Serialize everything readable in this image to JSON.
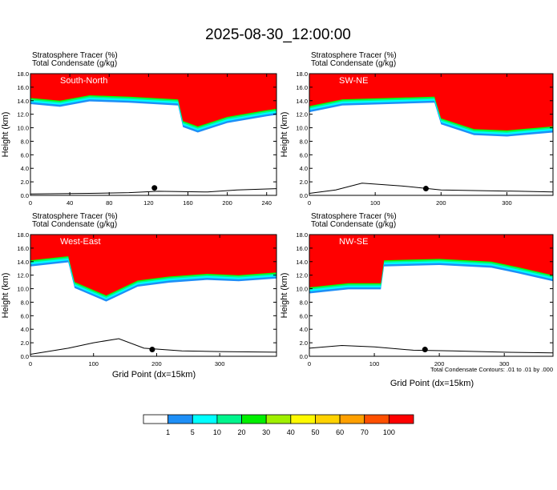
{
  "title": "2025-08-30_12:00:00",
  "panel_header_line1": "Stratosphere Tracer    (%)",
  "panel_header_line2": "Total Condensate    (g/kg)",
  "ylabel": "Height (km)",
  "xlabel": "Grid Point (dx=15km)",
  "contour_note": "Total Condensate Contours: .01 to .01 by .000",
  "colorbar": {
    "colors": [
      "#ffffff",
      "#1e8ff7",
      "#00ffff",
      "#00f58d",
      "#00f000",
      "#a0f000",
      "#fffa00",
      "#ffd200",
      "#ffa000",
      "#ff5000",
      "#ff0000"
    ],
    "labels": [
      "1",
      "5",
      "10",
      "20",
      "30",
      "40",
      "50",
      "60",
      "70",
      "100"
    ]
  },
  "chart_data": [
    {
      "type": "heatmap",
      "panel": "South-North",
      "xlim": [
        0,
        250
      ],
      "ylim": [
        0,
        18
      ],
      "xticks": [
        "0",
        "40",
        "80",
        "120",
        "160",
        "200",
        "240"
      ],
      "yticks": [
        "0.0",
        "2.0",
        "4.0",
        "6.0",
        "8.0",
        "10.0",
        "12.0",
        "14.0",
        "16.0",
        "18.0"
      ],
      "tracer_top": [
        [
          0,
          14.4
        ],
        [
          30,
          14.0
        ],
        [
          60,
          14.8
        ],
        [
          100,
          14.6
        ],
        [
          150,
          14.2
        ],
        [
          155,
          11.0
        ],
        [
          170,
          10.2
        ],
        [
          200,
          11.6
        ],
        [
          240,
          12.6
        ],
        [
          250,
          12.8
        ]
      ],
      "terrain": [
        [
          0,
          0.2
        ],
        [
          60,
          0.3
        ],
        [
          100,
          0.4
        ],
        [
          130,
          0.6
        ],
        [
          180,
          0.5
        ],
        [
          210,
          0.8
        ],
        [
          250,
          1.0
        ]
      ],
      "marker": [
        126,
        1.1
      ]
    },
    {
      "type": "heatmap",
      "panel": "SW-NE",
      "xlim": [
        0,
        370
      ],
      "ylim": [
        0,
        18
      ],
      "xticks": [
        "0",
        "100",
        "200",
        "300"
      ],
      "yticks": [
        "0.0",
        "2.0",
        "4.0",
        "6.0",
        "8.0",
        "10.0",
        "12.0",
        "14.0",
        "16.0",
        "18.0"
      ],
      "tracer_top": [
        [
          0,
          13.2
        ],
        [
          50,
          14.2
        ],
        [
          120,
          14.4
        ],
        [
          190,
          14.6
        ],
        [
          200,
          11.4
        ],
        [
          250,
          9.8
        ],
        [
          300,
          9.6
        ],
        [
          370,
          10.2
        ]
      ],
      "terrain": [
        [
          0,
          0.3
        ],
        [
          40,
          0.8
        ],
        [
          80,
          1.8
        ],
        [
          140,
          1.4
        ],
        [
          200,
          0.8
        ],
        [
          260,
          0.7
        ],
        [
          320,
          0.6
        ],
        [
          370,
          0.5
        ]
      ],
      "marker": [
        177,
        1.0
      ]
    },
    {
      "type": "heatmap",
      "panel": "West-East",
      "xlim": [
        0,
        390
      ],
      "ylim": [
        0,
        18
      ],
      "xticks": [
        "0",
        "100",
        "200",
        "300"
      ],
      "yticks": [
        "0.0",
        "2.0",
        "4.0",
        "6.0",
        "8.0",
        "10.0",
        "12.0",
        "14.0",
        "16.0",
        "18.0"
      ],
      "tracer_top": [
        [
          0,
          14.2
        ],
        [
          60,
          14.8
        ],
        [
          70,
          11.0
        ],
        [
          120,
          9.0
        ],
        [
          170,
          11.2
        ],
        [
          220,
          11.8
        ],
        [
          280,
          12.2
        ],
        [
          330,
          12.0
        ],
        [
          390,
          12.4
        ]
      ],
      "terrain": [
        [
          0,
          0.3
        ],
        [
          60,
          1.2
        ],
        [
          100,
          2.0
        ],
        [
          140,
          2.6
        ],
        [
          180,
          1.2
        ],
        [
          240,
          0.8
        ],
        [
          300,
          0.7
        ],
        [
          390,
          0.6
        ]
      ],
      "marker": [
        193,
        1.0
      ]
    },
    {
      "type": "heatmap",
      "panel": "NW-SE",
      "xlim": [
        0,
        375
      ],
      "ylim": [
        0,
        18
      ],
      "xticks": [
        "0",
        "100",
        "200",
        "300"
      ],
      "yticks": [
        "0.0",
        "2.0",
        "4.0",
        "6.0",
        "8.0",
        "10.0",
        "12.0",
        "14.0",
        "16.0",
        "18.0"
      ],
      "tracer_top": [
        [
          0,
          10.2
        ],
        [
          60,
          10.8
        ],
        [
          110,
          10.8
        ],
        [
          115,
          14.2
        ],
        [
          200,
          14.4
        ],
        [
          280,
          14.0
        ],
        [
          320,
          13.2
        ],
        [
          375,
          12.0
        ]
      ],
      "terrain": [
        [
          0,
          1.2
        ],
        [
          50,
          1.6
        ],
        [
          100,
          1.4
        ],
        [
          160,
          0.9
        ],
        [
          220,
          0.8
        ],
        [
          300,
          0.6
        ],
        [
          375,
          0.5
        ]
      ],
      "marker": [
        178,
        1.0
      ]
    }
  ]
}
